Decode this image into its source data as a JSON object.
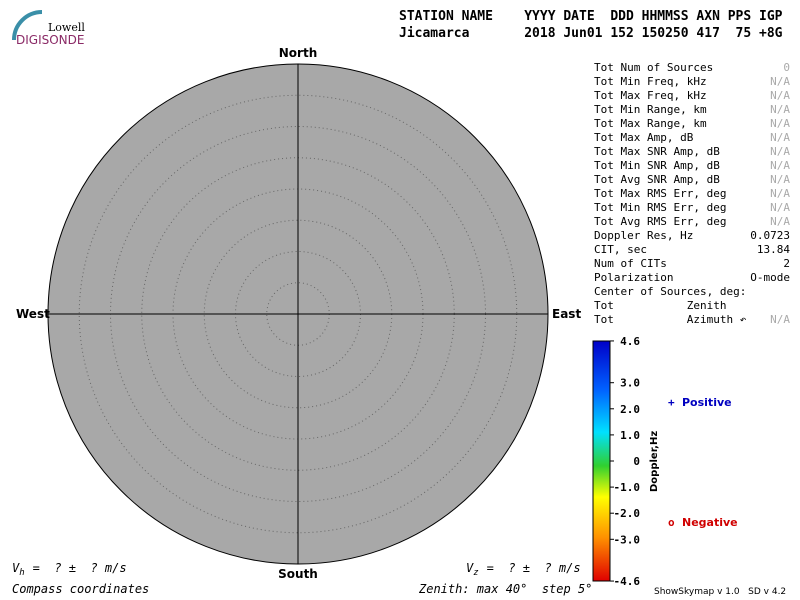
{
  "logo": {
    "top": "Lowell",
    "bottom": "DIGISONDE"
  },
  "header": {
    "labels": "STATION NAME    YYYY DATE  DDD HHMMSS AXN PPS IGP",
    "values": "Jicamarca       2018 Jun01 152 150250 417  75 +8G"
  },
  "compass": {
    "north": "North",
    "south": "South",
    "east": "East",
    "west": "West"
  },
  "stats": [
    {
      "label": "Tot Num of Sources",
      "value": "0"
    },
    {
      "label": "Tot Min Freq, kHz",
      "value": "N/A"
    },
    {
      "label": "Tot Max Freq, kHz",
      "value": "N/A"
    },
    {
      "label": "Tot Min Range, km",
      "value": "N/A"
    },
    {
      "label": "Tot Max Range, km",
      "value": "N/A"
    },
    {
      "label": "Tot Max Amp, dB",
      "value": "N/A"
    },
    {
      "label": "Tot Max SNR Amp, dB",
      "value": "N/A"
    },
    {
      "label": "Tot Min SNR Amp, dB",
      "value": "N/A"
    },
    {
      "label": "Tot Avg SNR Amp, dB",
      "value": "N/A"
    },
    {
      "label": "Tot Max RMS Err, deg",
      "value": "N/A"
    },
    {
      "label": "Tot Min RMS Err, deg",
      "value": "N/A"
    },
    {
      "label": "Tot Avg RMS Err, deg",
      "value": "N/A"
    },
    {
      "label": "Doppler Res, Hz",
      "value": "0.0723"
    },
    {
      "label": "CIT, sec",
      "value": "13.84"
    },
    {
      "label": "Num of CITs",
      "value": "2"
    },
    {
      "label": "Polarization",
      "value": "O-mode"
    },
    {
      "label": "Center of Sources, deg:"
    },
    {
      "label": "Tot           Zenith"
    },
    {
      "label": "Tot           Azimuth ↶",
      "value": "N/A"
    }
  ],
  "colorbar": {
    "title": "Doppler,Hz",
    "ticks": [
      "4.6",
      "3.0",
      "2.0",
      "1.0",
      "0",
      "-1.0",
      "-2.0",
      "-3.0",
      "-4.6"
    ]
  },
  "legend": {
    "positive_symbol": "+",
    "positive": "Positive",
    "negative_symbol": "o",
    "negative": "Negative"
  },
  "footer": {
    "vh_label": "V",
    "vh_sub": "h",
    "vh_value": "=  ? ±  ? m/s",
    "vz_label": "V",
    "vz_sub": "z",
    "vz_value": "=  ? ±  ? m/s",
    "coordinates": "Compass coordinates",
    "zenith": "Zenith: max 40°  step 5°",
    "version": "ShowSkymap v 1.0   SD v 4.2"
  }
}
